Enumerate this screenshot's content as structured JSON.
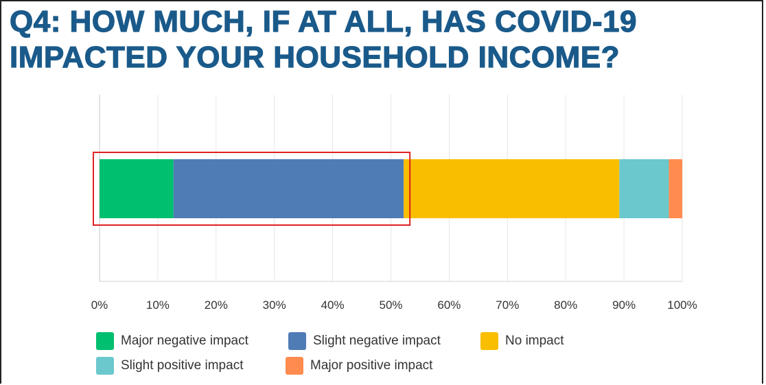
{
  "title_lines": [
    "Q4: HOW MUCH, IF AT ALL, HAS COVID-19",
    "IMPACTED YOUR HOUSEHOLD INCOME?"
  ],
  "chart_data": {
    "type": "bar",
    "orientation": "horizontal",
    "stacked": true,
    "categories": [
      ""
    ],
    "series": [
      {
        "name": "Major negative impact",
        "values": [
          12.7
        ],
        "color": "#00bf6f"
      },
      {
        "name": "Slight negative impact",
        "values": [
          39.5
        ],
        "color": "#507cb6"
      },
      {
        "name": "No impact",
        "values": [
          37.0
        ],
        "color": "#f9be00"
      },
      {
        "name": "Slight positive impact",
        "values": [
          8.5
        ],
        "color": "#6bc8cd"
      },
      {
        "name": "Major positive impact",
        "values": [
          2.3
        ],
        "color": "#ff8b4f"
      }
    ],
    "xlim": [
      0,
      100
    ],
    "x_ticks": [
      "0%",
      "10%",
      "20%",
      "30%",
      "40%",
      "50%",
      "60%",
      "70%",
      "80%",
      "90%",
      "100%"
    ],
    "grid": true,
    "legend_position": "bottom",
    "highlight": {
      "from": 0,
      "to": 52.2,
      "color": "#e02020"
    }
  }
}
